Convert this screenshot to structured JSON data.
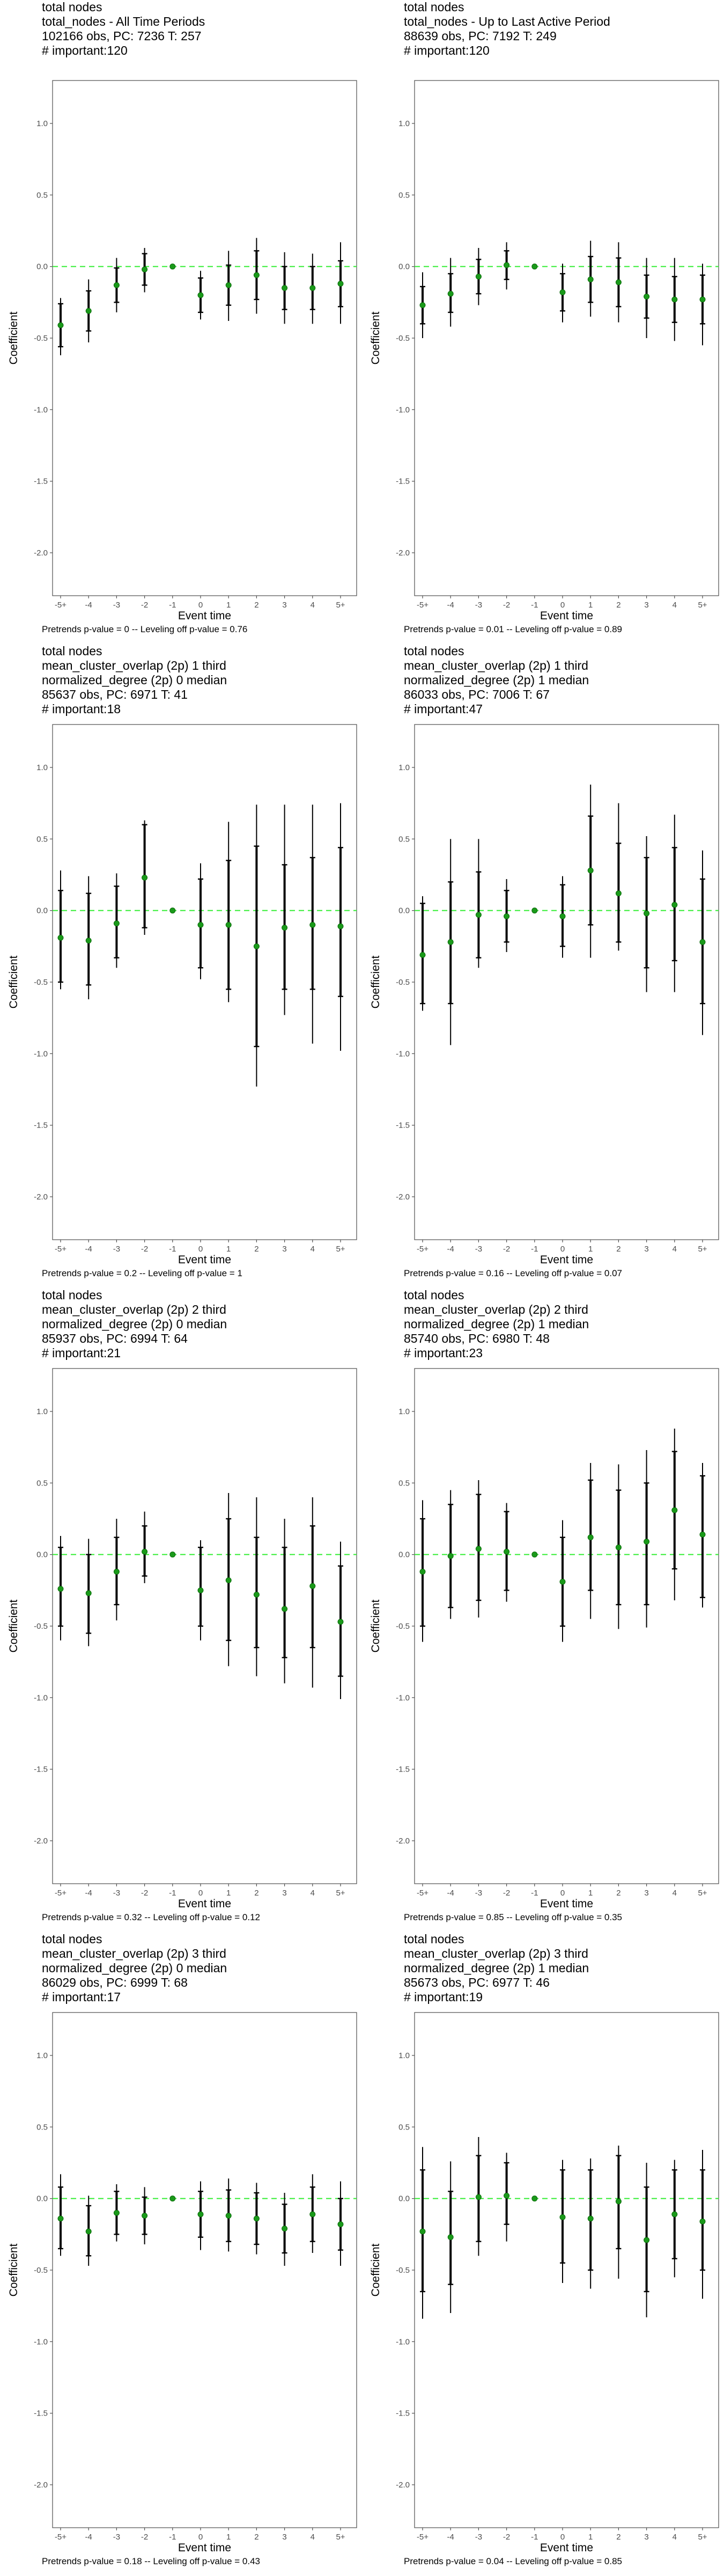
{
  "chart_data": [
    {
      "type": "scatter",
      "title_lines": [
        "total nodes",
        "total_nodes - All Time Periods",
        "102166 obs, PC: 7236 T: 257",
        "# important:120"
      ],
      "xlabel": "Event time",
      "ylabel": "Coefficient",
      "ylim": [
        -2.3,
        1.3
      ],
      "yticks": [
        "1.0",
        "0.5",
        "0.0",
        "-0.5",
        "-1.0",
        "-1.5",
        "-2.0"
      ],
      "categories": [
        "-5+",
        "-4",
        "-3",
        "-2",
        "-1",
        "0",
        "1",
        "2",
        "3",
        "4",
        "5+"
      ],
      "values": [
        -0.41,
        -0.31,
        -0.13,
        -0.02,
        0.0,
        -0.2,
        -0.13,
        -0.06,
        -0.15,
        -0.15,
        -0.12
      ],
      "ci_inner_low": [
        -0.56,
        -0.45,
        -0.25,
        -0.13,
        0.0,
        -0.32,
        -0.27,
        -0.23,
        -0.3,
        -0.3,
        -0.28
      ],
      "ci_inner_high": [
        -0.26,
        -0.17,
        -0.01,
        0.09,
        0.0,
        -0.08,
        0.01,
        0.11,
        0.0,
        0.0,
        0.04
      ],
      "ci_outer_low": [
        -0.62,
        -0.53,
        -0.32,
        -0.18,
        0.0,
        -0.37,
        -0.38,
        -0.33,
        -0.4,
        -0.4,
        -0.4
      ],
      "ci_outer_high": [
        -0.22,
        -0.09,
        0.06,
        0.13,
        0.0,
        -0.03,
        0.11,
        0.2,
        0.1,
        0.09,
        0.17
      ],
      "reference_line": 0,
      "caption": "Pretrends p-value = 0 -- Leveling off p-value = 0.76"
    },
    {
      "type": "scatter",
      "title_lines": [
        "total nodes",
        "total_nodes - Up to Last Active Period",
        "88639 obs, PC: 7192 T: 249",
        "# important:120"
      ],
      "xlabel": "Event time",
      "ylabel": "Coefficient",
      "ylim": [
        -2.3,
        1.3
      ],
      "yticks": [
        "1.0",
        "0.5",
        "0.0",
        "-0.5",
        "-1.0",
        "-1.5",
        "-2.0"
      ],
      "categories": [
        "-5+",
        "-4",
        "-3",
        "-2",
        "-1",
        "0",
        "1",
        "2",
        "3",
        "4",
        "5+"
      ],
      "values": [
        -0.27,
        -0.19,
        -0.07,
        0.01,
        0.0,
        -0.18,
        -0.09,
        -0.11,
        -0.21,
        -0.23,
        -0.23
      ],
      "ci_inner_low": [
        -0.4,
        -0.32,
        -0.19,
        -0.09,
        0.0,
        -0.31,
        -0.25,
        -0.28,
        -0.36,
        -0.39,
        -0.4
      ],
      "ci_inner_high": [
        -0.14,
        -0.05,
        0.05,
        0.11,
        0.0,
        -0.05,
        0.07,
        0.06,
        -0.06,
        -0.07,
        -0.06
      ],
      "ci_outer_low": [
        -0.5,
        -0.42,
        -0.27,
        -0.16,
        0.0,
        -0.39,
        -0.35,
        -0.39,
        -0.5,
        -0.52,
        -0.55
      ],
      "ci_outer_high": [
        -0.04,
        0.06,
        0.13,
        0.17,
        0.0,
        0.02,
        0.18,
        0.17,
        0.06,
        0.06,
        0.02
      ],
      "reference_line": 0,
      "caption": "Pretrends p-value = 0.01 -- Leveling off p-value = 0.89"
    },
    {
      "type": "scatter",
      "title_lines": [
        "total nodes",
        "mean_cluster_overlap (2p) 1 third",
        "normalized_degree (2p) 0 median",
        "85637 obs, PC: 6971 T: 41",
        "# important:18"
      ],
      "xlabel": "Event time",
      "ylabel": "Coefficient",
      "ylim": [
        -2.3,
        1.3
      ],
      "yticks": [
        "1.0",
        "0.5",
        "0.0",
        "-0.5",
        "-1.0",
        "-1.5",
        "-2.0"
      ],
      "categories": [
        "-5+",
        "-4",
        "-3",
        "-2",
        "-1",
        "0",
        "1",
        "2",
        "3",
        "4",
        "5+"
      ],
      "values": [
        -0.19,
        -0.21,
        -0.09,
        0.23,
        0.0,
        -0.1,
        -0.1,
        -0.25,
        -0.12,
        -0.1,
        -0.11
      ],
      "ci_inner_low": [
        -0.5,
        -0.52,
        -0.33,
        -0.12,
        0.0,
        -0.4,
        -0.55,
        -0.95,
        -0.55,
        -0.55,
        -0.6
      ],
      "ci_inner_high": [
        0.14,
        0.12,
        0.17,
        0.6,
        0.0,
        0.22,
        0.35,
        0.45,
        0.32,
        0.37,
        0.44
      ],
      "ci_outer_low": [
        -0.55,
        -0.62,
        -0.4,
        -0.17,
        0.0,
        -0.48,
        -0.64,
        -1.23,
        -0.73,
        -0.93,
        -0.98
      ],
      "ci_outer_high": [
        0.28,
        0.24,
        0.26,
        0.63,
        0.0,
        0.33,
        0.62,
        0.74,
        0.74,
        0.74,
        0.75
      ],
      "reference_line": 0,
      "caption": "Pretrends p-value = 0.2 -- Leveling off p-value = 1"
    },
    {
      "type": "scatter",
      "title_lines": [
        "total nodes",
        "mean_cluster_overlap (2p) 1 third",
        "normalized_degree (2p) 1 median",
        "86033 obs, PC: 7006 T: 67",
        "# important:47"
      ],
      "xlabel": "Event time",
      "ylabel": "Coefficient",
      "ylim": [
        -2.3,
        1.3
      ],
      "yticks": [
        "1.0",
        "0.5",
        "0.0",
        "-0.5",
        "-1.0",
        "-1.5",
        "-2.0"
      ],
      "categories": [
        "-5+",
        "-4",
        "-3",
        "-2",
        "-1",
        "0",
        "1",
        "2",
        "3",
        "4",
        "5+"
      ],
      "values": [
        -0.31,
        -0.22,
        -0.03,
        -0.04,
        0.0,
        -0.04,
        0.28,
        0.12,
        -0.02,
        0.04,
        -0.22
      ],
      "ci_inner_low": [
        -0.65,
        -0.65,
        -0.33,
        -0.22,
        0.0,
        -0.25,
        -0.1,
        -0.22,
        -0.4,
        -0.35,
        -0.65
      ],
      "ci_inner_high": [
        0.05,
        0.2,
        0.27,
        0.14,
        0.0,
        0.18,
        0.66,
        0.47,
        0.37,
        0.44,
        0.22
      ],
      "ci_outer_low": [
        -0.7,
        -0.94,
        -0.4,
        -0.29,
        0.0,
        -0.33,
        -0.33,
        -0.28,
        -0.57,
        -0.57,
        -0.87
      ],
      "ci_outer_high": [
        0.1,
        0.5,
        0.5,
        0.22,
        0.0,
        0.24,
        0.88,
        0.75,
        0.52,
        0.67,
        0.42
      ],
      "reference_line": 0,
      "caption": "Pretrends p-value = 0.16 -- Leveling off p-value = 0.07"
    },
    {
      "type": "scatter",
      "title_lines": [
        "total nodes",
        "mean_cluster_overlap (2p) 2 third",
        "normalized_degree (2p) 0 median",
        "85937 obs, PC: 6994 T: 64",
        "# important:21"
      ],
      "xlabel": "Event time",
      "ylabel": "Coefficient",
      "ylim": [
        -2.3,
        1.3
      ],
      "yticks": [
        "1.0",
        "0.5",
        "0.0",
        "-0.5",
        "-1.0",
        "-1.5",
        "-2.0"
      ],
      "categories": [
        "-5+",
        "-4",
        "-3",
        "-2",
        "-1",
        "0",
        "1",
        "2",
        "3",
        "4",
        "5+"
      ],
      "values": [
        -0.24,
        -0.27,
        -0.12,
        0.02,
        0.0,
        -0.25,
        -0.18,
        -0.28,
        -0.38,
        -0.22,
        -0.47
      ],
      "ci_inner_low": [
        -0.5,
        -0.55,
        -0.35,
        -0.15,
        0.0,
        -0.5,
        -0.6,
        -0.65,
        -0.72,
        -0.65,
        -0.85
      ],
      "ci_inner_high": [
        0.05,
        0.0,
        0.12,
        0.2,
        0.0,
        0.05,
        0.25,
        0.12,
        0.05,
        0.2,
        -0.08
      ],
      "ci_outer_low": [
        -0.6,
        -0.64,
        -0.46,
        -0.2,
        0.0,
        -0.6,
        -0.78,
        -0.85,
        -0.9,
        -0.93,
        -1.01
      ],
      "ci_outer_high": [
        0.13,
        0.11,
        0.25,
        0.3,
        0.0,
        0.1,
        0.43,
        0.4,
        0.25,
        0.4,
        0.09
      ],
      "reference_line": 0,
      "caption": "Pretrends p-value = 0.32 -- Leveling off p-value = 0.12"
    },
    {
      "type": "scatter",
      "title_lines": [
        "total nodes",
        "mean_cluster_overlap (2p) 2 third",
        "normalized_degree (2p) 1 median",
        "85740 obs, PC: 6980 T: 48",
        "# important:23"
      ],
      "xlabel": "Event time",
      "ylabel": "Coefficient",
      "ylim": [
        -2.3,
        1.3
      ],
      "yticks": [
        "1.0",
        "0.5",
        "0.0",
        "-0.5",
        "-1.0",
        "-1.5",
        "-2.0"
      ],
      "categories": [
        "-5+",
        "-4",
        "-3",
        "-2",
        "-1",
        "0",
        "1",
        "2",
        "3",
        "4",
        "5+"
      ],
      "values": [
        -0.12,
        -0.01,
        0.04,
        0.02,
        0.0,
        -0.19,
        0.12,
        0.05,
        0.09,
        0.31,
        0.14
      ],
      "ci_inner_low": [
        -0.5,
        -0.37,
        -0.32,
        -0.25,
        0.0,
        -0.5,
        -0.25,
        -0.35,
        -0.35,
        -0.1,
        -0.3
      ],
      "ci_inner_high": [
        0.25,
        0.35,
        0.42,
        0.3,
        0.0,
        0.12,
        0.52,
        0.45,
        0.5,
        0.72,
        0.55
      ],
      "ci_outer_low": [
        -0.61,
        -0.45,
        -0.44,
        -0.33,
        0.0,
        -0.61,
        -0.45,
        -0.52,
        -0.51,
        -0.32,
        -0.37
      ],
      "ci_outer_high": [
        0.38,
        0.45,
        0.52,
        0.36,
        0.0,
        0.24,
        0.64,
        0.63,
        0.73,
        0.88,
        0.64
      ],
      "reference_line": 0,
      "caption": "Pretrends p-value = 0.85 -- Leveling off p-value = 0.35"
    },
    {
      "type": "scatter",
      "title_lines": [
        "total nodes",
        "mean_cluster_overlap (2p) 3 third",
        "normalized_degree (2p) 0 median",
        "86029 obs, PC: 6999 T: 68",
        "# important:17"
      ],
      "xlabel": "Event time",
      "ylabel": "Coefficient",
      "ylim": [
        -2.3,
        1.3
      ],
      "yticks": [
        "1.0",
        "0.5",
        "0.0",
        "-0.5",
        "-1.0",
        "-1.5",
        "-2.0"
      ],
      "categories": [
        "-5+",
        "-4",
        "-3",
        "-2",
        "-1",
        "0",
        "1",
        "2",
        "3",
        "4",
        "5+"
      ],
      "values": [
        -0.14,
        -0.23,
        -0.1,
        -0.12,
        0.0,
        -0.11,
        -0.12,
        -0.14,
        -0.21,
        -0.11,
        -0.18
      ],
      "ci_inner_low": [
        -0.35,
        -0.4,
        -0.25,
        -0.25,
        0.0,
        -0.27,
        -0.3,
        -0.32,
        -0.38,
        -0.3,
        -0.36
      ],
      "ci_inner_high": [
        0.08,
        -0.05,
        0.05,
        0.01,
        0.0,
        0.05,
        0.06,
        0.04,
        -0.04,
        0.08,
        0.0
      ],
      "ci_outer_low": [
        -0.4,
        -0.47,
        -0.3,
        -0.32,
        0.0,
        -0.36,
        -0.37,
        -0.39,
        -0.47,
        -0.38,
        -0.47
      ],
      "ci_outer_high": [
        0.17,
        0.02,
        0.1,
        0.08,
        0.0,
        0.12,
        0.14,
        0.11,
        0.04,
        0.17,
        0.12
      ],
      "reference_line": 0,
      "caption": "Pretrends p-value = 0.18 -- Leveling off p-value = 0.43"
    },
    {
      "type": "scatter",
      "title_lines": [
        "total nodes",
        "mean_cluster_overlap (2p) 3 third",
        "normalized_degree (2p) 1 median",
        "85673 obs, PC: 6977 T: 46",
        "# important:19"
      ],
      "xlabel": "Event time",
      "ylabel": "Coefficient",
      "ylim": [
        -2.3,
        1.3
      ],
      "yticks": [
        "1.0",
        "0.5",
        "0.0",
        "-0.5",
        "-1.0",
        "-1.5",
        "-2.0"
      ],
      "categories": [
        "-5+",
        "-4",
        "-3",
        "-2",
        "-1",
        "0",
        "1",
        "2",
        "3",
        "4",
        "5+"
      ],
      "values": [
        -0.23,
        -0.27,
        0.01,
        0.02,
        0.0,
        -0.13,
        -0.14,
        -0.02,
        -0.29,
        -0.11,
        -0.16
      ],
      "ci_inner_low": [
        -0.65,
        -0.6,
        -0.3,
        -0.18,
        0.0,
        -0.45,
        -0.5,
        -0.35,
        -0.65,
        -0.42,
        -0.5
      ],
      "ci_inner_high": [
        0.2,
        0.05,
        0.3,
        0.25,
        0.0,
        0.2,
        0.2,
        0.3,
        0.08,
        0.2,
        0.2
      ],
      "ci_outer_low": [
        -0.84,
        -0.8,
        -0.4,
        -0.3,
        0.0,
        -0.59,
        -0.63,
        -0.56,
        -0.83,
        -0.55,
        -0.7
      ],
      "ci_outer_high": [
        0.36,
        0.26,
        0.43,
        0.32,
        0.0,
        0.27,
        0.28,
        0.37,
        0.25,
        0.27,
        0.34
      ],
      "reference_line": 0,
      "caption": "Pretrends p-value = 0.04 -- Leveling off p-value = 0.85"
    }
  ]
}
